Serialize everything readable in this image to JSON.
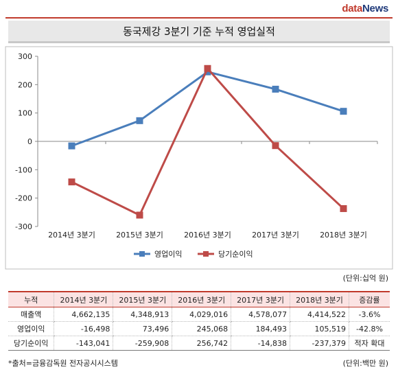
{
  "brand": {
    "part1": "data",
    "part2": "News"
  },
  "header": {
    "title": "동국제강 3분기 기준 누적 영업실적"
  },
  "colors": {
    "operating_profit": "#4a7ebb",
    "net_income": "#be4b48",
    "accent": "#c0392b"
  },
  "chart_data": {
    "type": "line",
    "title": "동국제강 3분기 기준 누적 영업실적",
    "categories": [
      "2014년 3분기",
      "2015년 3분기",
      "2016년 3분기",
      "2017년 3분기",
      "2018년 3분기"
    ],
    "series": [
      {
        "name": "영업이익",
        "values": [
          -16,
          73,
          245,
          184,
          106
        ]
      },
      {
        "name": "당기순이익",
        "values": [
          -143,
          -260,
          257,
          -15,
          -237
        ]
      }
    ],
    "ylim": [
      -300,
      300
    ],
    "yticks": [
      300,
      200,
      100,
      0,
      -100,
      -200,
      -300
    ],
    "grid": false,
    "legend": "bottom",
    "unit": "(단위:십억 원)"
  },
  "table": {
    "headers": [
      "누적",
      "2014년 3분기",
      "2015년 3분기",
      "2016년 3분기",
      "2017년 3분기",
      "2018년 3분기",
      "증감률"
    ],
    "rows": [
      [
        "매출액",
        "4,662,135",
        "4,348,913",
        "4,029,016",
        "4,578,077",
        "4,414,522",
        "-3.6%"
      ],
      [
        "영업이익",
        "-16,498",
        "73,496",
        "245,068",
        "184,493",
        "105,519",
        "-42.8%"
      ],
      [
        "당기순이익",
        "-143,041",
        "-259,908",
        "256,742",
        "-14,838",
        "-237,379",
        "적자 확대"
      ]
    ],
    "unit": "(단위:백만 원)"
  },
  "footer": {
    "source": "*출처=금융감독원 전자공시시스템"
  }
}
